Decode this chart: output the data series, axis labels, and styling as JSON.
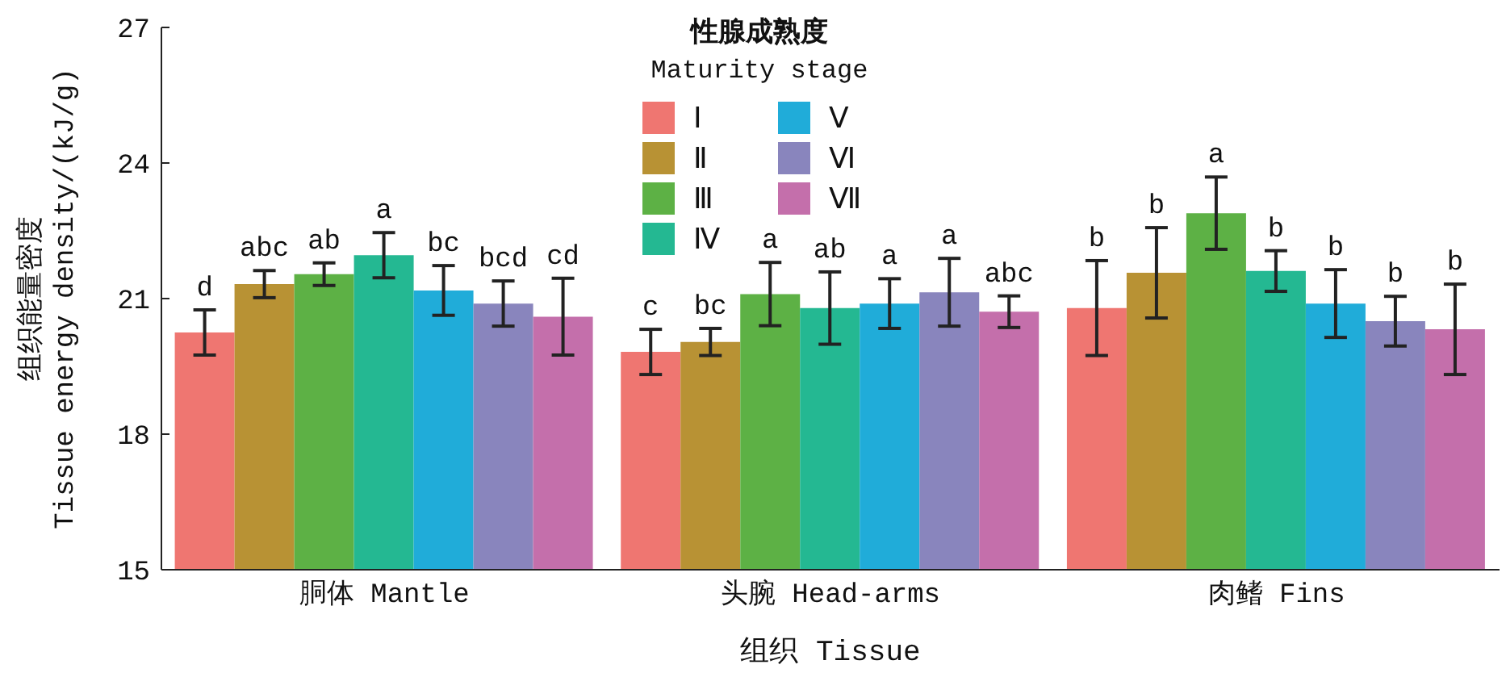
{
  "chart_data": {
    "type": "bar",
    "xlabel": "组织 Tissue",
    "ylabel": "组织能量密度\nTissue energy density/(kJ/g)",
    "legend_title": "性腺成熟度\nMaturity stage",
    "legend": "top",
    "categories": [
      "胴体 Mantle",
      "头腕 Head-arms",
      "肉鳍 Fins"
    ],
    "ylim": [
      15,
      27
    ],
    "yticks": [
      15,
      18,
      21,
      24,
      27
    ],
    "grid": false,
    "series": [
      {
        "name": "Ⅰ",
        "color": "#ef7671",
        "values": [
          20.25,
          19.82,
          20.79
        ],
        "errors": [
          0.5,
          0.5,
          1.05
        ],
        "value_labels": [
          "d",
          "c",
          "b"
        ]
      },
      {
        "name": "Ⅱ",
        "color": "#b89234",
        "values": [
          21.32,
          20.04,
          21.57
        ],
        "errors": [
          0.3,
          0.3,
          1.0
        ],
        "value_labels": [
          "abc",
          "bc",
          "b"
        ]
      },
      {
        "name": "Ⅲ",
        "color": "#5db145",
        "values": [
          21.54,
          21.1,
          22.89
        ],
        "errors": [
          0.25,
          0.7,
          0.8
        ],
        "value_labels": [
          "ab",
          "a",
          "a"
        ]
      },
      {
        "name": "Ⅳ",
        "color": "#24b892",
        "values": [
          21.96,
          20.79,
          21.61
        ],
        "errors": [
          0.5,
          0.8,
          0.45
        ],
        "value_labels": [
          "a",
          "ab",
          "b"
        ]
      },
      {
        "name": "Ⅴ",
        "color": "#20acd9",
        "values": [
          21.18,
          20.89,
          20.89
        ],
        "errors": [
          0.55,
          0.55,
          0.75
        ],
        "value_labels": [
          "bc",
          "a",
          "b"
        ]
      },
      {
        "name": "Ⅵ",
        "color": "#8985bd",
        "values": [
          20.89,
          21.14,
          20.5
        ],
        "errors": [
          0.5,
          0.75,
          0.55
        ],
        "value_labels": [
          "bcd",
          "a",
          "b"
        ]
      },
      {
        "name": "Ⅶ",
        "color": "#c46fab",
        "values": [
          20.6,
          20.71,
          20.32
        ],
        "errors": [
          0.85,
          0.35,
          1.0
        ],
        "value_labels": [
          "cd",
          "abc",
          "b"
        ]
      }
    ]
  }
}
